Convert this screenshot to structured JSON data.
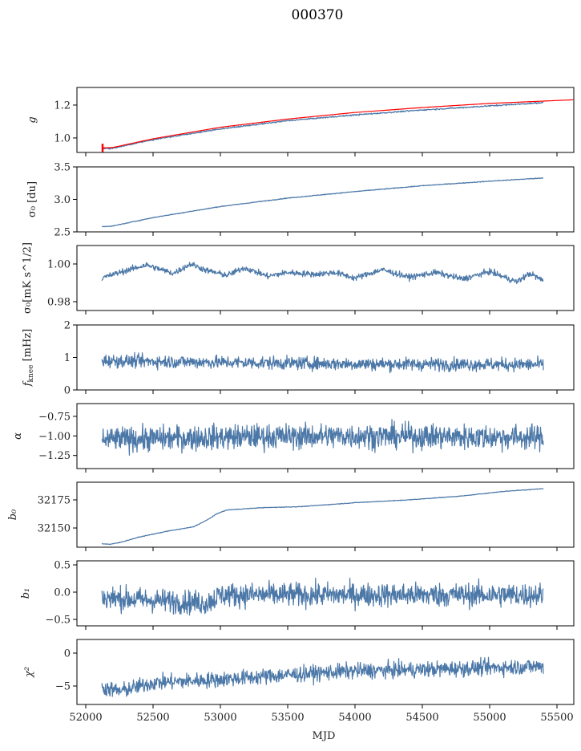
{
  "figure": {
    "title": "000370",
    "xlabel": "MJD"
  },
  "colors": {
    "series_blue": "#4c78a8",
    "fit_red": "#ff0000",
    "axes": "#000000"
  },
  "chart_data": [
    {
      "type": "line",
      "id": "g",
      "ylabel": "g",
      "ylabel_tex": "g",
      "xlim": [
        51940,
        55660
      ],
      "ylim": [
        0.912,
        1.307
      ],
      "yticks": [
        1.0,
        1.2
      ],
      "ytick_labels": [
        "1.0",
        "1.2"
      ],
      "xticks": [
        52000,
        52500,
        53000,
        53500,
        54000,
        54500,
        55000,
        55500
      ],
      "xtick_labels": [],
      "series": [
        {
          "name": "g",
          "color": "#4c78a8",
          "x_range": [
            52120,
            55400
          ],
          "trend": [
            [
              52120,
              0.935
            ],
            [
              52200,
              0.937
            ],
            [
              52500,
              0.99
            ],
            [
              53000,
              1.055
            ],
            [
              53500,
              1.105
            ],
            [
              54000,
              1.14
            ],
            [
              54500,
              1.17
            ],
            [
              55000,
              1.195
            ],
            [
              55400,
              1.215
            ]
          ],
          "noise": 0.002
        },
        {
          "name": "g fit",
          "color": "#ff0000",
          "x_range": [
            52120,
            55620
          ],
          "trend": [
            [
              52120,
              0.94
            ],
            [
              52200,
              0.942
            ],
            [
              52500,
              0.995
            ],
            [
              53000,
              1.065
            ],
            [
              53500,
              1.115
            ],
            [
              54000,
              1.155
            ],
            [
              54500,
              1.185
            ],
            [
              55000,
              1.21
            ],
            [
              55620,
              1.232
            ]
          ],
          "noise": 0.0,
          "errorbar_at": 52125,
          "errorbar_halfwidth": 0.025
        }
      ]
    },
    {
      "type": "line",
      "id": "sigma0_du",
      "ylabel": "σ₀ [du]",
      "xlim": [
        51940,
        55660
      ],
      "ylim": [
        2.5,
        3.5
      ],
      "yticks": [
        2.5,
        3.0,
        3.5
      ],
      "ytick_labels": [
        "2.5",
        "3.0",
        "3.5"
      ],
      "xticks": [
        52000,
        52500,
        53000,
        53500,
        54000,
        54500,
        55000,
        55500
      ],
      "xtick_labels": [],
      "series": [
        {
          "name": "sigma0 du",
          "color": "#4c78a8",
          "x_range": [
            52120,
            55400
          ],
          "trend": [
            [
              52120,
              2.58
            ],
            [
              52200,
              2.59
            ],
            [
              52500,
              2.72
            ],
            [
              53000,
              2.89
            ],
            [
              53500,
              3.02
            ],
            [
              54000,
              3.12
            ],
            [
              54500,
              3.21
            ],
            [
              55000,
              3.28
            ],
            [
              55400,
              3.33
            ]
          ],
          "noise": 0.003
        }
      ]
    },
    {
      "type": "line",
      "id": "sigma0_mK",
      "ylabel": "σ₀[mK s^1/2]",
      "xlim": [
        51940,
        55660
      ],
      "ylim": [
        0.9753,
        1.0098
      ],
      "yticks": [
        0.98,
        1.0
      ],
      "ytick_labels": [
        "0.98",
        "1.00"
      ],
      "xticks": [
        52000,
        52500,
        53000,
        53500,
        54000,
        54500,
        55000,
        55500
      ],
      "xtick_labels": [],
      "series": [
        {
          "name": "sigma0 mK",
          "color": "#4c78a8",
          "x_range": [
            52120,
            55400
          ],
          "trend": [
            [
              52120,
              0.9925
            ],
            [
              52250,
              0.9955
            ],
            [
              52450,
              0.9995
            ],
            [
              52650,
              0.995
            ],
            [
              52780,
              1.0
            ],
            [
              52900,
              0.9965
            ],
            [
              53050,
              0.994
            ],
            [
              53180,
              0.998
            ],
            [
              53350,
              0.9935
            ],
            [
              53500,
              0.9955
            ],
            [
              53700,
              0.9945
            ],
            [
              53850,
              0.9955
            ],
            [
              54000,
              0.9925
            ],
            [
              54200,
              0.997
            ],
            [
              54400,
              0.993
            ],
            [
              54600,
              0.9955
            ],
            [
              54800,
              0.992
            ],
            [
              55000,
              0.996
            ],
            [
              55200,
              0.9905
            ],
            [
              55300,
              0.995
            ],
            [
              55400,
              0.991
            ]
          ],
          "noise": 0.0008
        }
      ]
    },
    {
      "type": "line",
      "id": "fknee",
      "ylabel": "f_knee [mHz]",
      "xlim": [
        51940,
        55660
      ],
      "ylim": [
        0,
        2
      ],
      "yticks": [
        0,
        1,
        2
      ],
      "ytick_labels": [
        "0",
        "1",
        "2"
      ],
      "xticks": [
        52000,
        52500,
        53000,
        53500,
        54000,
        54500,
        55000,
        55500
      ],
      "xtick_labels": [],
      "series": [
        {
          "name": "fknee",
          "color": "#4c78a8",
          "x_range": [
            52120,
            55400
          ],
          "trend": [
            [
              52120,
              0.9
            ],
            [
              53000,
              0.85
            ],
            [
              54000,
              0.8
            ],
            [
              55400,
              0.78
            ]
          ],
          "noise": 0.1
        }
      ]
    },
    {
      "type": "line",
      "id": "alpha",
      "ylabel": "α",
      "xlim": [
        51940,
        55660
      ],
      "ylim": [
        -1.417,
        -0.587
      ],
      "yticks": [
        -1.25,
        -1.0,
        -0.75
      ],
      "ytick_labels": [
        "−1.25",
        "−1.00",
        "−0.75"
      ],
      "xticks": [
        52000,
        52500,
        53000,
        53500,
        54000,
        54500,
        55000,
        55500
      ],
      "xtick_labels": [],
      "series": [
        {
          "name": "alpha",
          "color": "#4c78a8",
          "x_range": [
            52120,
            55400
          ],
          "trend": [
            [
              52120,
              -1.05
            ],
            [
              52600,
              -1.03
            ],
            [
              53200,
              -1.01
            ],
            [
              54000,
              -1.0
            ],
            [
              55400,
              -1.02
            ]
          ],
          "noise": 0.08
        }
      ]
    },
    {
      "type": "line",
      "id": "b0",
      "ylabel": "b₀",
      "xlim": [
        51940,
        55660
      ],
      "ylim": [
        32132.9,
        32190.7
      ],
      "yticks": [
        32150,
        32175
      ],
      "ytick_labels": [
        "32150",
        "32175"
      ],
      "xticks": [
        52000,
        52500,
        53000,
        53500,
        54000,
        54500,
        55000,
        55500
      ],
      "xtick_labels": [],
      "series": [
        {
          "name": "b0",
          "color": "#4c78a8",
          "x_range": [
            52120,
            55400
          ],
          "trend": [
            [
              52120,
              32136
            ],
            [
              52180,
              32135.5
            ],
            [
              52250,
              32137
            ],
            [
              52400,
              32142
            ],
            [
              52600,
              32147
            ],
            [
              52800,
              32151
            ],
            [
              52900,
              32157
            ],
            [
              52980,
              32163
            ],
            [
              53050,
              32166
            ],
            [
              53300,
              32168
            ],
            [
              53600,
              32169
            ],
            [
              54000,
              32172.5
            ],
            [
              54400,
              32175
            ],
            [
              54800,
              32178.5
            ],
            [
              55100,
              32182.5
            ],
            [
              55400,
              32185
            ]
          ],
          "noise": 0.15
        }
      ]
    },
    {
      "type": "line",
      "id": "b1",
      "ylabel": "b₁",
      "xlim": [
        51940,
        55660
      ],
      "ylim": [
        -0.618,
        0.574
      ],
      "yticks": [
        -0.5,
        0.0,
        0.5
      ],
      "ytick_labels": [
        "−0.5",
        "0.0",
        "0.5"
      ],
      "xticks": [
        52000,
        52500,
        53000,
        53500,
        54000,
        54500,
        55000,
        55500
      ],
      "xtick_labels": [],
      "series": [
        {
          "name": "b1",
          "color": "#4c78a8",
          "x_range": [
            52120,
            55400
          ],
          "trend": [
            [
              52120,
              -0.1
            ],
            [
              52500,
              -0.15
            ],
            [
              52900,
              -0.2
            ],
            [
              53000,
              -0.05
            ],
            [
              54000,
              -0.05
            ],
            [
              55400,
              -0.05
            ]
          ],
          "noise": 0.11
        }
      ]
    },
    {
      "type": "line",
      "id": "chi2",
      "ylabel": "χ²",
      "xlim": [
        51940,
        55660
      ],
      "ylim": [
        -7.8,
        2.07
      ],
      "yticks": [
        -5,
        0
      ],
      "ytick_labels": [
        "−5",
        "0"
      ],
      "xticks": [
        52000,
        52500,
        53000,
        53500,
        54000,
        54500,
        55000,
        55500
      ],
      "xtick_labels": [
        "52000",
        "52500",
        "53000",
        "53500",
        "54000",
        "54500",
        "55000",
        "55500"
      ],
      "series": [
        {
          "name": "chi2",
          "color": "#4c78a8",
          "x_range": [
            52120,
            55400
          ],
          "trend": [
            [
              52120,
              -5.2
            ],
            [
              52250,
              -5.8
            ],
            [
              52500,
              -4.5
            ],
            [
              53000,
              -4.0
            ],
            [
              53500,
              -3.3
            ],
            [
              54000,
              -2.7
            ],
            [
              54500,
              -2.5
            ],
            [
              55000,
              -2.2
            ],
            [
              55400,
              -2.0
            ]
          ],
          "noise": 0.6
        }
      ]
    }
  ]
}
